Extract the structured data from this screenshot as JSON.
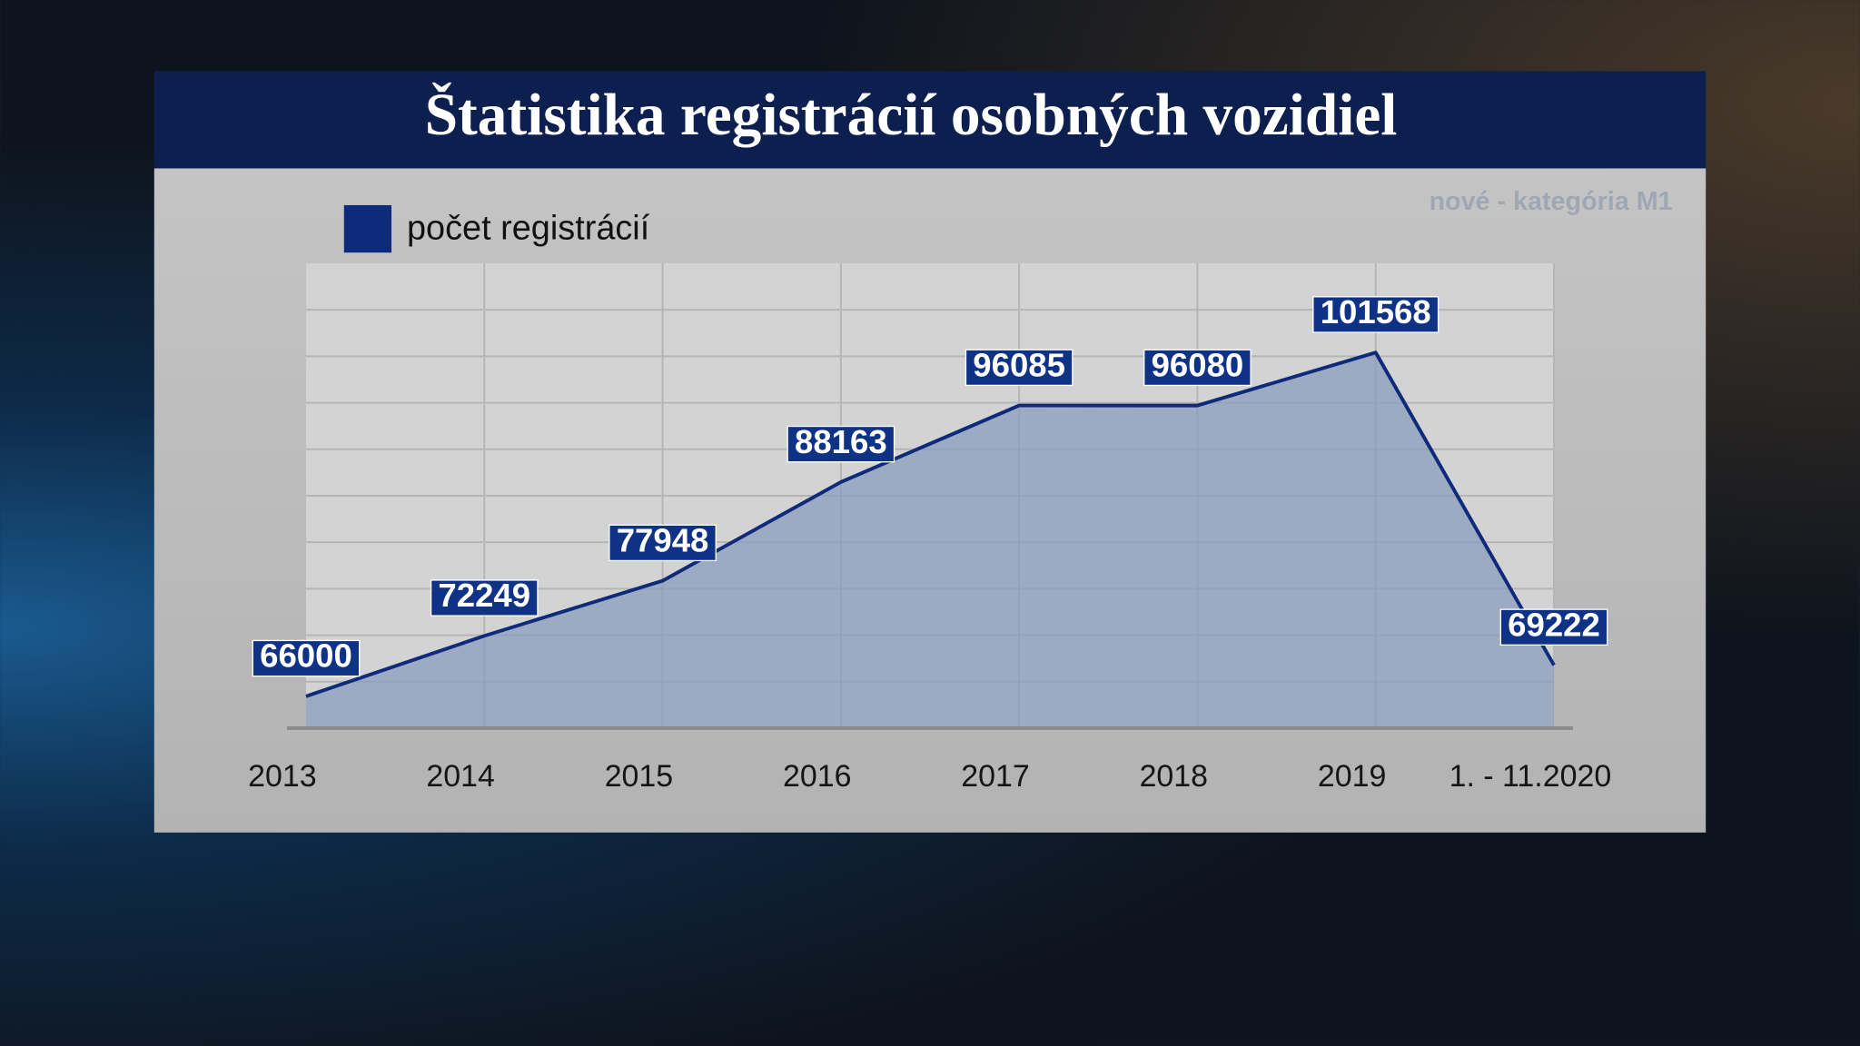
{
  "chart_data": {
    "type": "area",
    "title": "Štatistika registrácií osobných vozidiel",
    "subtitle": "nové -  kategória M1",
    "categories": [
      "2013",
      "2014",
      "2015",
      "2016",
      "2017",
      "2018",
      "2019",
      "1. - 11.2020"
    ],
    "series": [
      {
        "name": "počet registrácií",
        "color": "#0e2a7a",
        "values": [
          66000,
          72249,
          77948,
          88163,
          96085,
          96080,
          101568,
          69222
        ]
      }
    ],
    "ylim": [
      62700,
      110800
    ],
    "grid": true
  }
}
